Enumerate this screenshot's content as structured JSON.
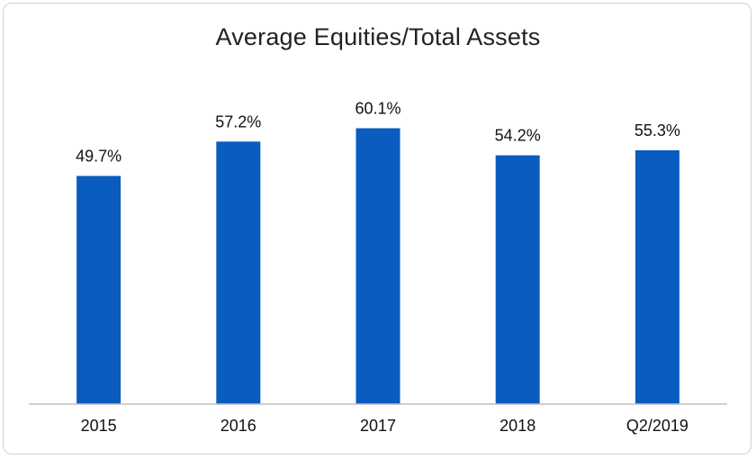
{
  "chart_data": {
    "type": "bar",
    "title": "Average Equities/Total Assets",
    "xlabel": "",
    "ylabel": "",
    "categories": [
      "2015",
      "2016",
      "2017",
      "2018",
      "Q2/2019"
    ],
    "values": [
      49.7,
      57.2,
      60.1,
      54.2,
      55.3
    ],
    "value_labels": [
      "49.7%",
      "57.2%",
      "60.1%",
      "54.2%",
      "55.3%"
    ],
    "unit": "%",
    "ylim": [
      0,
      70
    ],
    "grid": false,
    "legend": "none",
    "colors": {
      "bar": "#0a5cbf",
      "axis": "#bfbfbf",
      "text": "#111111"
    }
  }
}
